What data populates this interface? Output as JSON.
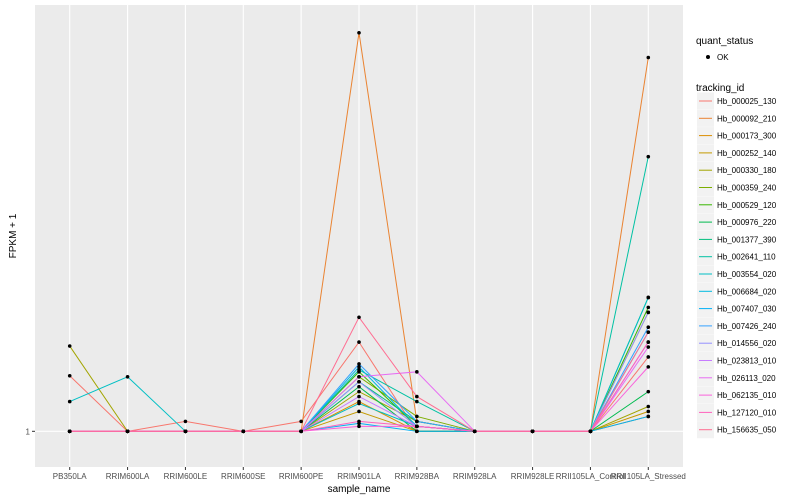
{
  "chart_data": {
    "type": "line",
    "xlabel": "sample_name",
    "ylabel": "FPKM + 1",
    "categories": [
      "PB350LA",
      "RRIM600LA",
      "RRIM600LE",
      "RRIM600SE",
      "RRIM600PE",
      "RRIM901LA",
      "RRIM928BA",
      "RRIM928LA",
      "RRIM928LE",
      "RRII105LA_Control",
      "RRII105LA_Stressed"
    ],
    "y_tick_labels": [
      "1"
    ],
    "y_ticks": [
      1
    ],
    "ylim": [
      0.64,
      5.3
    ],
    "grid": true,
    "background": "#EBEBEB",
    "point_legend": {
      "title": "quant_status",
      "entries": [
        "OK"
      ]
    },
    "line_legend_title": "tracking_id",
    "legend_position": "right",
    "series": [
      {
        "name": "Hb_000025_130",
        "color": "#F8766D",
        "values": [
          1.56,
          1,
          1.1,
          1,
          1.1,
          1.9,
          1,
          1,
          1,
          1,
          1.75
        ]
      },
      {
        "name": "Hb_000092_210",
        "color": "#EA8331",
        "values": [
          1,
          1,
          1,
          1,
          1,
          5.02,
          1.1,
          1,
          1,
          1,
          4.77
        ]
      },
      {
        "name": "Hb_000173_300",
        "color": "#DB8E00",
        "values": [
          1,
          1,
          1,
          1,
          1,
          1.3,
          1,
          1,
          1,
          1,
          1.15
        ]
      },
      {
        "name": "Hb_000252_140",
        "color": "#C49A00",
        "values": [
          1,
          1,
          1,
          1,
          1,
          1.2,
          1,
          1,
          1,
          1,
          1.2
        ]
      },
      {
        "name": "Hb_000330_180",
        "color": "#A3A500",
        "values": [
          1.86,
          1,
          1,
          1,
          1,
          1.4,
          1.1,
          1,
          1,
          1,
          1.25
        ]
      },
      {
        "name": "Hb_000359_240",
        "color": "#7CAE00",
        "values": [
          1,
          1,
          1,
          1,
          1,
          1.55,
          1.15,
          1,
          1,
          1,
          2.2
        ]
      },
      {
        "name": "Hb_000529_120",
        "color": "#39B600",
        "values": [
          1,
          1,
          1,
          1,
          1,
          1.6,
          1.05,
          1,
          1,
          1,
          2.25
        ]
      },
      {
        "name": "Hb_000976_220",
        "color": "#00BB4E",
        "values": [
          1,
          1,
          1,
          1,
          1,
          1.45,
          1,
          1,
          1,
          1,
          1.4
        ]
      },
      {
        "name": "Hb_001377_390",
        "color": "#00BF7D",
        "values": [
          1,
          1,
          1,
          1,
          1,
          1.5,
          1.1,
          1,
          1,
          1,
          2.35
        ]
      },
      {
        "name": "Hb_002641_110",
        "color": "#00C1A3",
        "values": [
          1,
          1,
          1,
          1,
          1,
          1.62,
          1.3,
          1,
          1,
          1,
          3.77
        ]
      },
      {
        "name": "Hb_003554_020",
        "color": "#00BFC4",
        "values": [
          1.3,
          1.55,
          1,
          1,
          1,
          1.28,
          1.05,
          1,
          1,
          1,
          2.35
        ]
      },
      {
        "name": "Hb_006684_020",
        "color": "#00BAE0",
        "values": [
          1,
          1,
          1,
          1,
          1,
          1.65,
          1.05,
          1,
          1,
          1,
          2.0
        ]
      },
      {
        "name": "Hb_007407_030",
        "color": "#00B0F6",
        "values": [
          1,
          1,
          1,
          1,
          1,
          1.08,
          1,
          1,
          1,
          1,
          1.15
        ]
      },
      {
        "name": "Hb_007426_240",
        "color": "#35A2FF",
        "values": [
          1,
          1,
          1,
          1,
          1,
          1.68,
          1.1,
          1,
          1,
          1,
          2.05
        ]
      },
      {
        "name": "Hb_014556_020",
        "color": "#9590FF",
        "values": [
          1,
          1,
          1,
          1,
          1,
          1.5,
          1.05,
          1,
          1,
          1,
          2.2
        ]
      },
      {
        "name": "Hb_023813_010",
        "color": "#C77CFF",
        "values": [
          1,
          1,
          1,
          1,
          1,
          1.35,
          1.05,
          1,
          1,
          1,
          1.9
        ]
      },
      {
        "name": "Hb_026113_020",
        "color": "#E76BF3",
        "values": [
          1,
          1,
          1,
          1,
          1,
          1.55,
          1.6,
          1,
          1,
          1,
          1.85
        ]
      },
      {
        "name": "Hb_062135_010",
        "color": "#FA62DB",
        "values": [
          1,
          1,
          1,
          1,
          1,
          1.05,
          1.05,
          1,
          1,
          1,
          1.65
        ]
      },
      {
        "name": "Hb_127120_010",
        "color": "#FF62BC",
        "values": [
          1,
          1,
          1,
          1,
          1,
          1.1,
          1.05,
          1,
          1,
          1,
          1.9
        ]
      },
      {
        "name": "Hb_156635_050",
        "color": "#FF6C91",
        "values": [
          1,
          1,
          1,
          1,
          1,
          2.15,
          1.35,
          1,
          1,
          1,
          2.0
        ]
      }
    ]
  }
}
